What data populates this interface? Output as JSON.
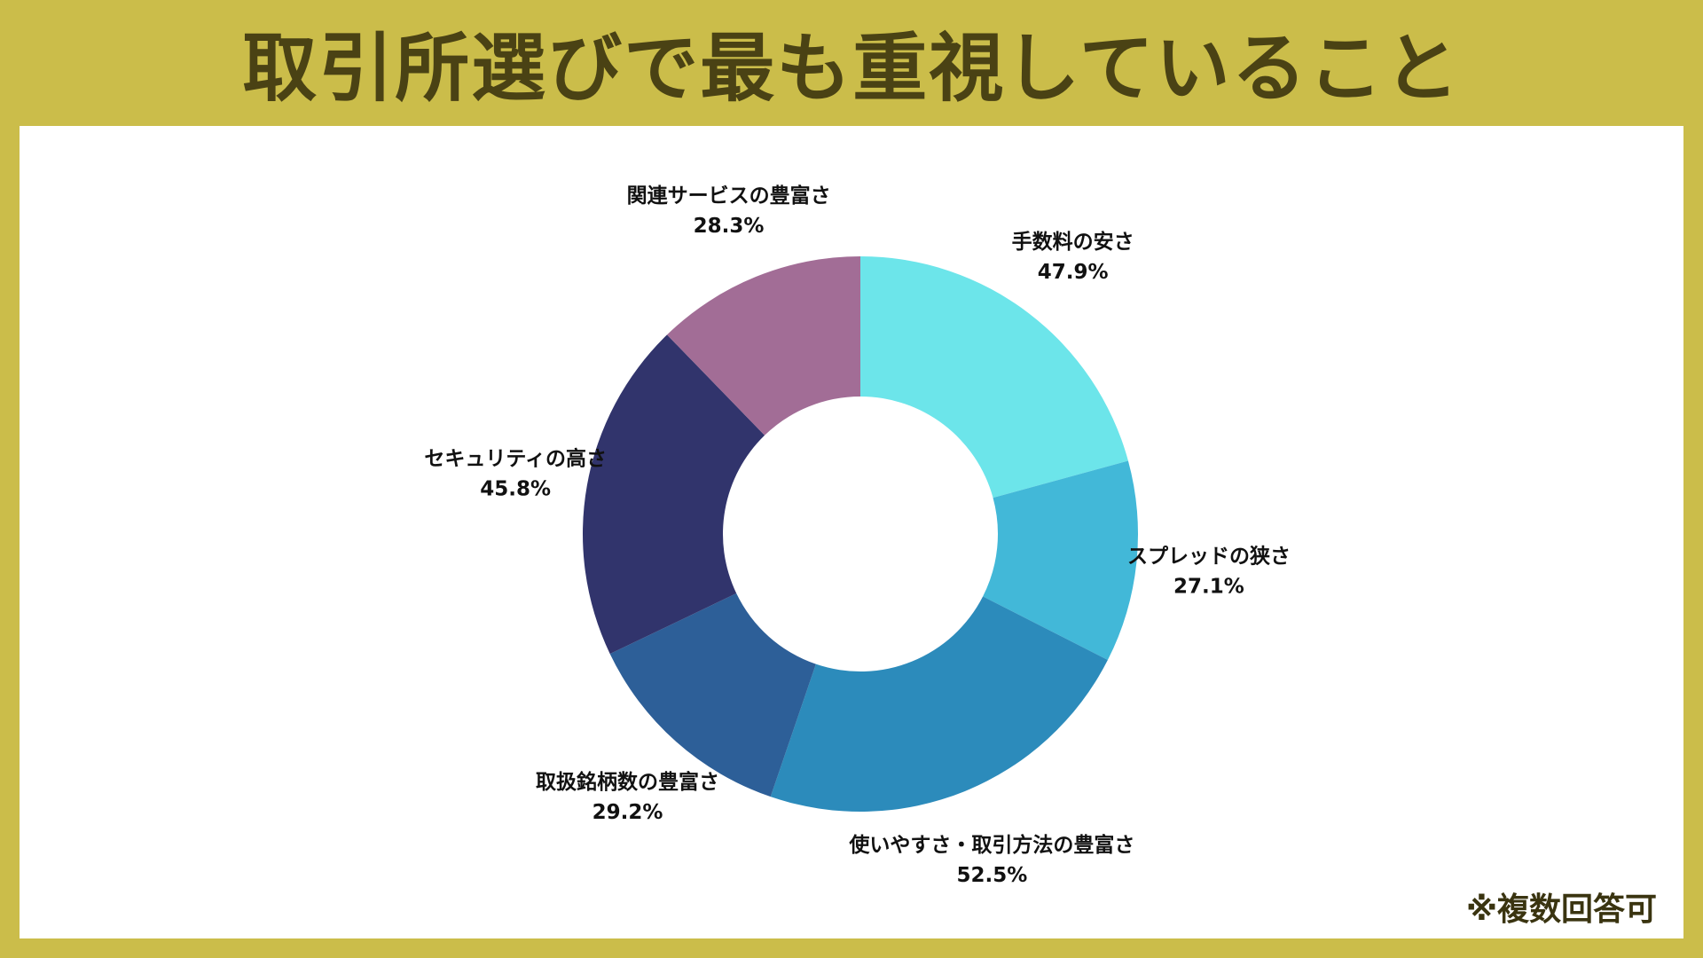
{
  "title": "取引所選びで最も重視していること",
  "note": "※複数回答可",
  "chart_data": {
    "type": "pie",
    "donut": true,
    "slices": [
      {
        "label": "手数料の安さ",
        "value": 47.9,
        "display": "47.9%",
        "color": "#6ce5ea"
      },
      {
        "label": "スプレッドの狭さ",
        "value": 27.1,
        "display": "27.1%",
        "color": "#42b8d8"
      },
      {
        "label": "使いやすさ・取引方法の豊富さ",
        "value": 52.5,
        "display": "52.5%",
        "color": "#2c8bbb"
      },
      {
        "label": "取扱銘柄数の豊富さ",
        "value": 29.2,
        "display": "29.2%",
        "color": "#2d5f98"
      },
      {
        "label": "セキュリティの高さ",
        "value": 45.8,
        "display": "45.8%",
        "color": "#31346c"
      },
      {
        "label": "関連サービスの豊富さ",
        "value": 28.3,
        "display": "28.3%",
        "color": "#a26d96"
      }
    ]
  }
}
